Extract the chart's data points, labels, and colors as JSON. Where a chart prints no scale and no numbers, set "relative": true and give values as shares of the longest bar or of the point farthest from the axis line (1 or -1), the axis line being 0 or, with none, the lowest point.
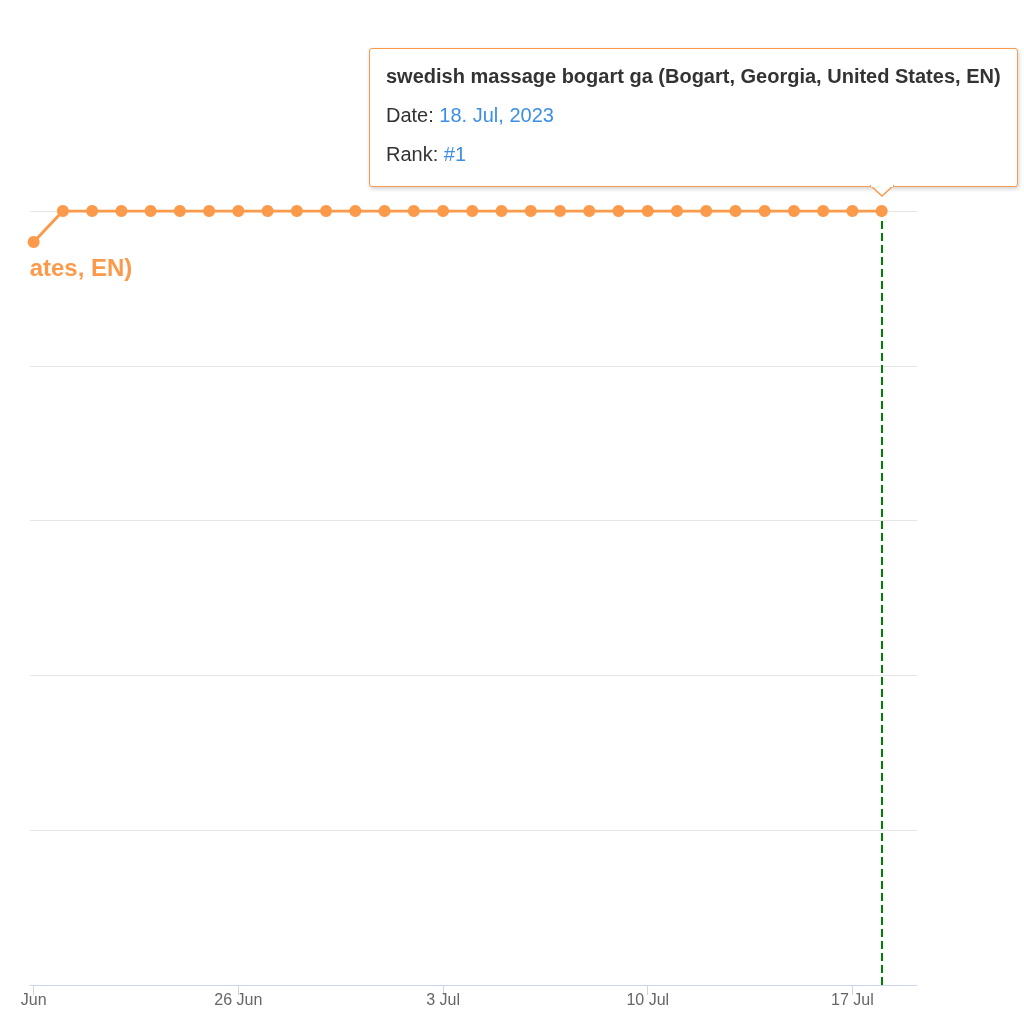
{
  "chart_data": {
    "type": "line",
    "x": [
      "2023-06-19",
      "2023-06-20",
      "2023-06-21",
      "2023-06-22",
      "2023-06-23",
      "2023-06-24",
      "2023-06-25",
      "2023-06-26",
      "2023-06-27",
      "2023-06-28",
      "2023-06-29",
      "2023-06-30",
      "2023-07-01",
      "2023-07-02",
      "2023-07-03",
      "2023-07-04",
      "2023-07-05",
      "2023-07-06",
      "2023-07-07",
      "2023-07-08",
      "2023-07-09",
      "2023-07-10",
      "2023-07-11",
      "2023-07-12",
      "2023-07-13",
      "2023-07-14",
      "2023-07-15",
      "2023-07-16",
      "2023-07-17",
      "2023-07-18"
    ],
    "series": [
      {
        "name": "ates, EN)",
        "color": "#fc9a4c",
        "values": [
          0.96,
          1,
          1,
          1,
          1,
          1,
          1,
          1,
          1,
          1,
          1,
          1,
          1,
          1,
          1,
          1,
          1,
          1,
          1,
          1,
          1,
          1,
          1,
          1,
          1,
          1,
          1,
          1,
          1,
          1
        ]
      }
    ],
    "relative": true,
    "xlim": [
      "2023-06-18T21:00",
      "2023-07-19T05:00"
    ],
    "xticks": [
      {
        "value": "2023-06-19",
        "label": "Jun"
      },
      {
        "value": "2023-06-26",
        "label": "26 Jun"
      },
      {
        "value": "2023-07-03",
        "label": "3 Jul"
      },
      {
        "value": "2023-07-10",
        "label": "10 Jul"
      },
      {
        "value": "2023-07-17",
        "label": "17 Jul"
      }
    ],
    "grid": "y",
    "marker": "circle",
    "line_style": "solid",
    "ref_lines": [
      {
        "axis": "x",
        "value": "2023-07-18",
        "color": "#008000",
        "line_style": "dashed"
      }
    ],
    "annotations": [
      "swedish massage bogart ga (Bogart, Georgia, United States, EN)",
      "Date: 18. Jul, 2023",
      "Rank: #1"
    ]
  }
}
